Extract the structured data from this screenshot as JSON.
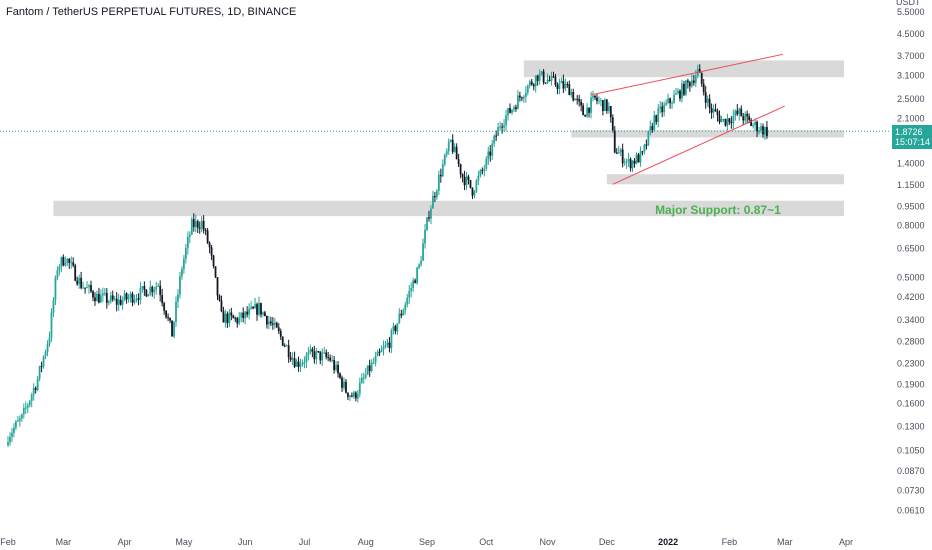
{
  "header": {
    "title": "Fantom / TetherUS PERPETUAL FUTURES, 1D, BINANCE"
  },
  "price_tag": {
    "price": "1.8726",
    "countdown": "15:07:14"
  },
  "colors": {
    "up": "#26a69a",
    "down": "#131722",
    "zone": "#d9d9d9",
    "trendline": "#f04b5a",
    "annotation": "#4caf50",
    "last_price_line": "#26a69a"
  },
  "chart_data": {
    "type": "candlestick",
    "title": "Fantom / TetherUS PERPETUAL FUTURES, 1D, BINANCE",
    "y_scale": "log",
    "y_unit": "USDT",
    "ylim": [
      0.055,
      5.8
    ],
    "y_ticks": [
      "5.5000",
      "4.5000",
      "3.7000",
      "3.1000",
      "2.5000",
      "2.1000",
      "1.4000",
      "1.1500",
      "0.9500",
      "0.8000",
      "0.6500",
      "0.5000",
      "0.4200",
      "0.3400",
      "0.2800",
      "0.2300",
      "0.1900",
      "0.1600",
      "0.1300",
      "0.1050",
      "0.0870",
      "0.0730",
      "0.0610"
    ],
    "y_tick_values": [
      5.5,
      4.5,
      3.7,
      3.1,
      2.5,
      2.1,
      1.4,
      1.15,
      0.95,
      0.8,
      0.65,
      0.5,
      0.42,
      0.34,
      0.28,
      0.23,
      0.19,
      0.16,
      0.13,
      0.105,
      0.087,
      0.073,
      0.061
    ],
    "x_ticks": [
      "Feb",
      "Mar",
      "Apr",
      "May",
      "Jun",
      "Jul",
      "Aug",
      "Sep",
      "Oct",
      "Nov",
      "Dec",
      "2022",
      "Feb",
      "Mar",
      "Apr"
    ],
    "x_tick_dates": [
      "2021-02-01",
      "2021-03-01",
      "2021-04-01",
      "2021-05-01",
      "2021-06-01",
      "2021-07-01",
      "2021-08-01",
      "2021-09-01",
      "2021-10-01",
      "2021-11-01",
      "2021-12-01",
      "2022-01-01",
      "2022-02-01",
      "2022-03-01",
      "2022-04-01"
    ],
    "last_price": 1.8726,
    "path_anchors": [
      [
        "2021-02-01",
        0.12
      ],
      [
        "2021-02-08",
        0.14
      ],
      [
        "2021-02-16",
        0.2
      ],
      [
        "2021-02-22",
        0.3
      ],
      [
        "2021-02-26",
        0.55
      ],
      [
        "2021-03-02",
        0.6
      ],
      [
        "2021-03-10",
        0.47
      ],
      [
        "2021-03-18",
        0.42
      ],
      [
        "2021-03-28",
        0.4
      ],
      [
        "2021-04-08",
        0.43
      ],
      [
        "2021-04-18",
        0.47
      ],
      [
        "2021-04-25",
        0.3
      ],
      [
        "2021-04-30",
        0.55
      ],
      [
        "2021-05-05",
        0.8
      ],
      [
        "2021-05-10",
        0.82
      ],
      [
        "2021-05-14",
        0.65
      ],
      [
        "2021-05-20",
        0.35
      ],
      [
        "2021-05-28",
        0.34
      ],
      [
        "2021-06-08",
        0.38
      ],
      [
        "2021-06-18",
        0.3
      ],
      [
        "2021-06-27",
        0.23
      ],
      [
        "2021-07-05",
        0.25
      ],
      [
        "2021-07-14",
        0.24
      ],
      [
        "2021-07-22",
        0.18
      ],
      [
        "2021-07-26",
        0.17
      ],
      [
        "2021-08-03",
        0.22
      ],
      [
        "2021-08-13",
        0.28
      ],
      [
        "2021-08-20",
        0.38
      ],
      [
        "2021-08-28",
        0.55
      ],
      [
        "2021-09-02",
        0.9
      ],
      [
        "2021-09-08",
        1.3
      ],
      [
        "2021-09-13",
        1.7
      ],
      [
        "2021-09-19",
        1.25
      ],
      [
        "2021-09-24",
        1.1
      ],
      [
        "2021-10-01",
        1.4
      ],
      [
        "2021-10-08",
        2.0
      ],
      [
        "2021-10-14",
        2.3
      ],
      [
        "2021-10-20",
        2.7
      ],
      [
        "2021-10-27",
        3.1
      ],
      [
        "2021-11-04",
        2.9
      ],
      [
        "2021-11-12",
        2.75
      ],
      [
        "2021-11-19",
        2.2
      ],
      [
        "2021-11-25",
        2.5
      ],
      [
        "2021-12-02",
        2.3
      ],
      [
        "2021-12-05",
        1.6
      ],
      [
        "2021-12-12",
        1.4
      ],
      [
        "2021-12-19",
        1.5
      ],
      [
        "2021-12-25",
        2.1
      ],
      [
        "2022-01-03",
        2.5
      ],
      [
        "2022-01-10",
        2.8
      ],
      [
        "2022-01-16",
        3.2
      ],
      [
        "2022-01-22",
        2.3
      ],
      [
        "2022-01-29",
        2.05
      ],
      [
        "2022-02-06",
        2.2
      ],
      [
        "2022-02-12",
        2.0
      ],
      [
        "2022-02-20",
        1.87
      ]
    ],
    "zones": [
      {
        "from": "2021-02-24",
        "to": "2022-03-31",
        "low": 0.87,
        "high": 1.0
      },
      {
        "from": "2021-10-20",
        "to": "2022-03-31",
        "low": 3.05,
        "high": 3.55
      },
      {
        "from": "2021-11-13",
        "to": "2022-03-31",
        "low": 1.77,
        "high": 1.89
      },
      {
        "from": "2021-12-01",
        "to": "2022-03-31",
        "low": 1.16,
        "high": 1.27
      }
    ],
    "trendlines": [
      {
        "from": [
          "2021-11-23",
          2.6
        ],
        "to": [
          "2022-02-28",
          3.75
        ]
      },
      {
        "from": [
          "2021-12-04",
          1.16
        ],
        "to": [
          "2022-03-01",
          2.35
        ]
      }
    ],
    "annotations": [
      {
        "text": "Major Support: 0.87~1",
        "date": "2022-02-27",
        "value": 0.93
      }
    ]
  }
}
